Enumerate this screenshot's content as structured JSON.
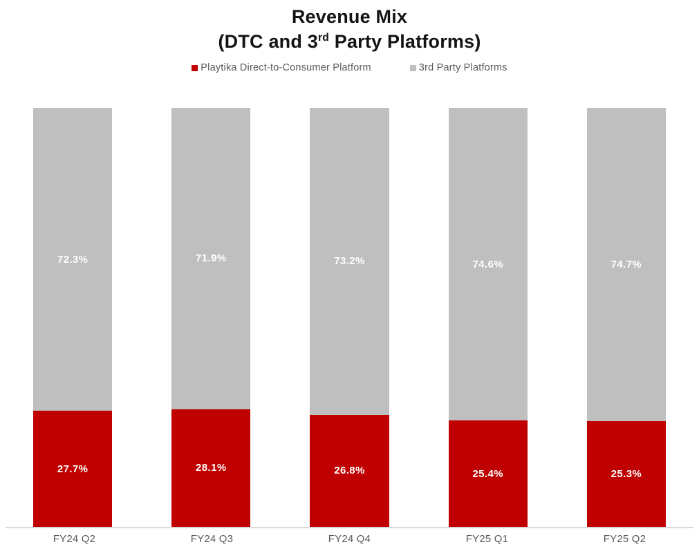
{
  "title": {
    "line1": "Revenue Mix",
    "line2_pre": "(DTC and 3",
    "line2_sup": "rd",
    "line2_post": " Party Platforms)"
  },
  "colors": {
    "dtc": "#c00000",
    "third_party": "#bfbfbf",
    "bar_label": "#ffffff",
    "axis_text": "#595959",
    "axis_line": "#d9d9d9",
    "title_text": "#141414"
  },
  "chart_data": {
    "type": "bar",
    "stacked": true,
    "orientation": "vertical",
    "title": "Revenue Mix (DTC and 3rd Party Platforms)",
    "xlabel": "",
    "ylabel": "",
    "ylim": [
      0,
      100
    ],
    "grid": false,
    "legend_position": "top",
    "categories": [
      "FY24 Q2",
      "FY24 Q3",
      "FY24 Q4",
      "FY25 Q1",
      "FY25 Q2"
    ],
    "series": [
      {
        "name": "Playtika Direct-to-Consumer Platform",
        "color": "#c00000",
        "values": [
          27.7,
          28.1,
          26.8,
          25.4,
          25.3
        ],
        "labels": [
          "27.7%",
          "28.1%",
          "26.8%",
          "25.4%",
          "25.3%"
        ]
      },
      {
        "name": "3rd Party Platforms",
        "color": "#bfbfbf",
        "values": [
          72.3,
          71.9,
          73.2,
          74.6,
          74.7
        ],
        "labels": [
          "72.3%",
          "71.9%",
          "73.2%",
          "74.6%",
          "74.7%"
        ]
      }
    ]
  }
}
